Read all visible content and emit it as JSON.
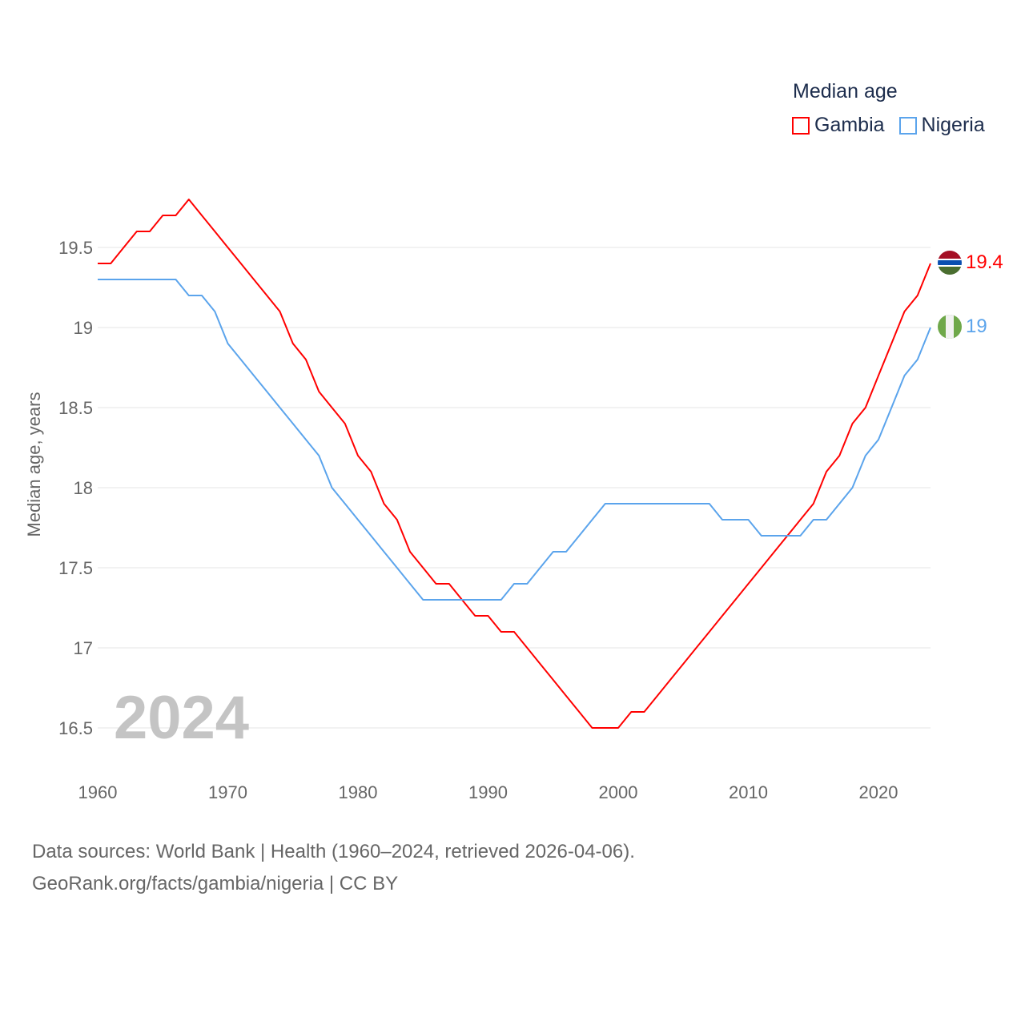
{
  "chart_data": {
    "type": "line",
    "title": "Median age",
    "xlabel": "",
    "ylabel": "Median age, years",
    "xlim": [
      1960,
      2024
    ],
    "ylim": [
      16.2,
      19.95
    ],
    "yticks": [
      16.5,
      17,
      17.5,
      18,
      18.5,
      19,
      19.5
    ],
    "ytick_labels": [
      "16.5",
      "17",
      "17.5",
      "18",
      "18.5",
      "19",
      "19.5"
    ],
    "xticks": [
      1960,
      1970,
      1980,
      1990,
      2000,
      2010,
      2020
    ],
    "xtick_labels": [
      "1960",
      "1970",
      "1980",
      "1990",
      "2000",
      "2010",
      "2020"
    ],
    "grid": true,
    "legend_placement": "top-right",
    "year_label": "2024",
    "x": [
      1960,
      1961,
      1962,
      1963,
      1964,
      1965,
      1966,
      1967,
      1968,
      1969,
      1970,
      1971,
      1972,
      1973,
      1974,
      1975,
      1976,
      1977,
      1978,
      1979,
      1980,
      1981,
      1982,
      1983,
      1984,
      1985,
      1986,
      1987,
      1988,
      1989,
      1990,
      1991,
      1992,
      1993,
      1994,
      1995,
      1996,
      1997,
      1998,
      1999,
      2000,
      2001,
      2002,
      2003,
      2004,
      2005,
      2006,
      2007,
      2008,
      2009,
      2010,
      2011,
      2012,
      2013,
      2014,
      2015,
      2016,
      2017,
      2018,
      2019,
      2020,
      2021,
      2022,
      2023,
      2024
    ],
    "series": [
      {
        "name": "Gambia",
        "color": "#ff0000",
        "end_label": "19.4",
        "values": [
          19.4,
          19.4,
          19.5,
          19.6,
          19.6,
          19.7,
          19.7,
          19.8,
          19.7,
          19.6,
          19.5,
          19.4,
          19.3,
          19.2,
          19.1,
          18.9,
          18.8,
          18.6,
          18.5,
          18.4,
          18.2,
          18.1,
          17.9,
          17.8,
          17.6,
          17.5,
          17.4,
          17.4,
          17.3,
          17.2,
          17.2,
          17.1,
          17.1,
          17.0,
          16.9,
          16.8,
          16.7,
          16.6,
          16.5,
          16.5,
          16.5,
          16.6,
          16.6,
          16.7,
          16.8,
          16.9,
          17.0,
          17.1,
          17.2,
          17.3,
          17.4,
          17.5,
          17.6,
          17.7,
          17.8,
          17.9,
          18.1,
          18.2,
          18.4,
          18.5,
          18.7,
          18.9,
          19.1,
          19.2,
          19.4
        ]
      },
      {
        "name": "Nigeria",
        "color": "#5ba4ec",
        "end_label": "19",
        "values": [
          19.3,
          19.3,
          19.3,
          19.3,
          19.3,
          19.3,
          19.3,
          19.2,
          19.2,
          19.1,
          18.9,
          18.8,
          18.7,
          18.6,
          18.5,
          18.4,
          18.3,
          18.2,
          18.0,
          17.9,
          17.8,
          17.7,
          17.6,
          17.5,
          17.4,
          17.3,
          17.3,
          17.3,
          17.3,
          17.3,
          17.3,
          17.3,
          17.4,
          17.4,
          17.5,
          17.6,
          17.6,
          17.7,
          17.8,
          17.9,
          17.9,
          17.9,
          17.9,
          17.9,
          17.9,
          17.9,
          17.9,
          17.9,
          17.8,
          17.8,
          17.8,
          17.7,
          17.7,
          17.7,
          17.7,
          17.8,
          17.8,
          17.9,
          18.0,
          18.2,
          18.3,
          18.5,
          18.7,
          18.8,
          19.0
        ]
      }
    ]
  },
  "source": {
    "line1": "Data sources: World Bank | Health (1960–2024, retrieved 2026-04-06).",
    "line2": "GeoRank.org/facts/gambia/nigeria | CC BY"
  }
}
